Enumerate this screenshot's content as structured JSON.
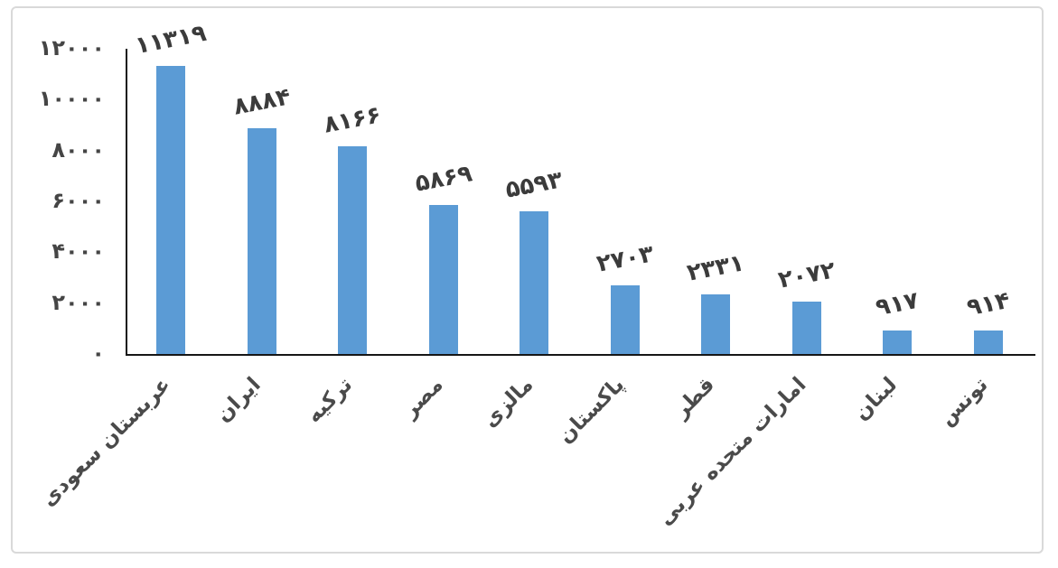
{
  "chart_data": {
    "type": "bar",
    "title": "",
    "xlabel": "",
    "ylabel": "",
    "categories": [
      "عربستان سعودی",
      "ایران",
      "ترکیه",
      "مصر",
      "مالزی",
      "پاکستان",
      "قطر",
      "امارات متحده عربی",
      "لبنان",
      "تونس"
    ],
    "values": [
      11319,
      8884,
      8166,
      5869,
      5593,
      2703,
      2331,
      2072,
      917,
      914
    ],
    "value_labels": [
      "۱۱۳۱۹",
      "۸۸۸۴",
      "۸۱۶۶",
      "۵۸۶۹",
      "۵۵۹۳",
      "۲۷۰۳",
      "۲۳۳۱",
      "۲۰۷۲",
      "۹۱۷",
      "۹۱۴"
    ],
    "yticks": {
      "values": [
        0,
        2000,
        4000,
        6000,
        8000,
        10000,
        12000
      ],
      "labels": [
        "۰",
        "۲۰۰۰",
        "۴۰۰۰",
        "۶۰۰۰",
        "۸۰۰۰",
        "۱۰۰۰۰",
        "۱۲۰۰۰"
      ]
    },
    "ylim": [
      0,
      12000
    ],
    "grid": false,
    "legend": false,
    "bar_color": "#5B9BD5",
    "text_color": "#454545",
    "axis_color": "#161616",
    "frame_border_color": "#D9D9D9",
    "background_color": "#FFFFFF"
  }
}
